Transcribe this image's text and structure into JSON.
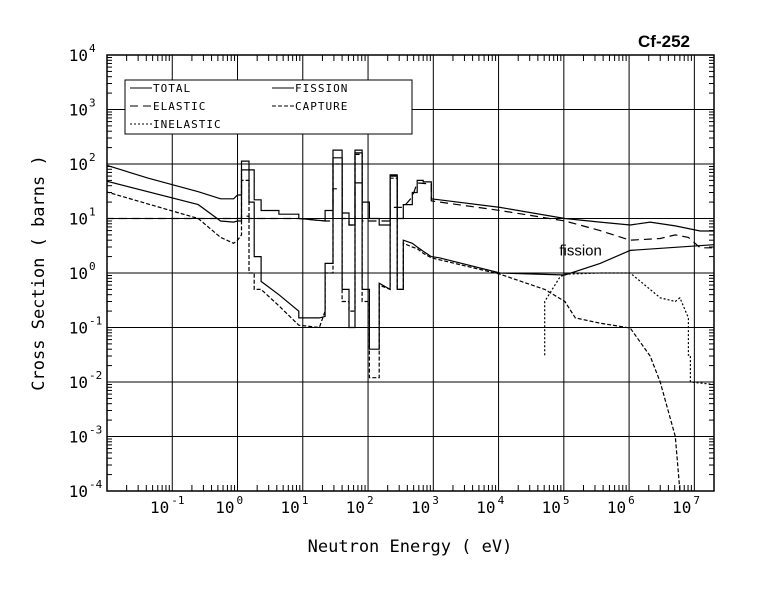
{
  "chart_data": {
    "type": "line",
    "title": "Cf-252",
    "xlabel": "Neutron Energy ( eV)",
    "ylabel": "Cross Section ( barns )",
    "xscale": "log",
    "yscale": "log",
    "xlim": [
      0.01,
      20000000
    ],
    "ylim": [
      0.0001,
      10000
    ],
    "grid": true,
    "legend_position": "top-left",
    "x_ticks": [
      {
        "exp": "-1",
        "value": 0.1
      },
      {
        "exp": "0",
        "value": 1
      },
      {
        "exp": "1",
        "value": 10
      },
      {
        "exp": "2",
        "value": 100
      },
      {
        "exp": "3",
        "value": 1000
      },
      {
        "exp": "4",
        "value": 10000
      },
      {
        "exp": "5",
        "value": 100000
      },
      {
        "exp": "6",
        "value": 1000000
      },
      {
        "exp": "7",
        "value": 10000000
      }
    ],
    "y_ticks": [
      {
        "exp": "-4",
        "value": 0.0001
      },
      {
        "exp": "-3",
        "value": 0.001
      },
      {
        "exp": "-2",
        "value": 0.01
      },
      {
        "exp": "-1",
        "value": 0.1
      },
      {
        "exp": "0",
        "value": 1
      },
      {
        "exp": "1",
        "value": 10
      },
      {
        "exp": "2",
        "value": 100
      },
      {
        "exp": "3",
        "value": 1000
      },
      {
        "exp": "4",
        "value": 10000
      }
    ],
    "tick_base": "10",
    "annotations": [
      {
        "text": "fission",
        "x": 150000,
        "y": 2.5
      }
    ],
    "series": [
      {
        "name": "TOTAL",
        "style": "solid",
        "points": [
          [
            0.0096,
            96
          ],
          [
            0.043,
            55
          ],
          [
            0.25,
            31
          ],
          [
            0.55,
            23
          ],
          [
            0.87,
            23
          ],
          [
            1,
            27
          ],
          [
            1.15,
            27
          ],
          [
            1.15,
            113
          ],
          [
            1.5,
            113
          ],
          [
            1.5,
            78
          ],
          [
            1.8,
            78
          ],
          [
            1.8,
            22
          ],
          [
            2.3,
            22
          ],
          [
            2.3,
            14
          ],
          [
            4.3,
            14
          ],
          [
            4.3,
            12
          ],
          [
            8.7,
            12
          ],
          [
            8.7,
            10
          ],
          [
            22,
            9
          ],
          [
            22,
            14
          ],
          [
            29,
            14
          ],
          [
            29,
            180
          ],
          [
            40,
            180
          ],
          [
            40,
            12.6
          ],
          [
            51,
            12.6
          ],
          [
            51,
            7.6
          ],
          [
            63,
            7.6
          ],
          [
            63,
            180
          ],
          [
            81,
            180
          ],
          [
            81,
            20
          ],
          [
            105,
            20
          ],
          [
            105,
            10
          ],
          [
            148,
            10
          ],
          [
            148,
            7.6
          ],
          [
            218,
            7.6
          ],
          [
            218,
            63
          ],
          [
            280,
            63
          ],
          [
            280,
            10
          ],
          [
            347,
            10
          ],
          [
            347,
            18
          ],
          [
            476,
            18
          ],
          [
            476,
            30
          ],
          [
            567,
            30
          ],
          [
            567,
            50
          ],
          [
            700,
            50
          ],
          [
            700,
            47
          ],
          [
            930,
            47
          ],
          [
            930,
            23
          ],
          [
            1240,
            22
          ],
          [
            10500,
            16
          ],
          [
            104000,
            10
          ],
          [
            360000,
            8.6
          ],
          [
            1040000,
            7.6
          ],
          [
            2100000,
            8.6
          ],
          [
            5100000,
            7.3
          ],
          [
            12300000,
            5.9
          ],
          [
            20000000,
            5.9
          ]
        ]
      },
      {
        "name": "ELASTIC",
        "style": "dashed",
        "points": [
          [
            0.0096,
            10
          ],
          [
            1,
            10
          ],
          [
            1.15,
            10
          ],
          [
            1.15,
            11
          ],
          [
            1.5,
            11
          ],
          [
            1.5,
            10
          ],
          [
            8.7,
            10
          ],
          [
            22,
            9
          ],
          [
            29,
            9
          ],
          [
            29,
            35
          ],
          [
            40,
            35
          ],
          [
            40,
            10
          ],
          [
            51,
            10
          ],
          [
            51,
            7.6
          ],
          [
            63,
            7.6
          ],
          [
            63,
            45
          ],
          [
            81,
            45
          ],
          [
            81,
            9
          ],
          [
            218,
            9
          ],
          [
            218,
            16
          ],
          [
            347,
            16
          ],
          [
            476,
            25
          ],
          [
            567,
            45
          ],
          [
            930,
            43
          ],
          [
            930,
            21
          ],
          [
            10500,
            14
          ],
          [
            104000,
            9
          ],
          [
            150000,
            8
          ],
          [
            360000,
            6
          ],
          [
            1040000,
            4
          ],
          [
            3000000,
            4.3
          ],
          [
            5100000,
            5
          ],
          [
            8100000,
            4.5
          ],
          [
            12300000,
            2.9
          ],
          [
            20000000,
            2.9
          ]
        ]
      },
      {
        "name": "INELASTIC",
        "style": "dotted",
        "points": [
          [
            51000,
            0.031
          ],
          [
            51000,
            0.3
          ],
          [
            87000,
            0.84
          ],
          [
            104000,
            0.95
          ],
          [
            360000,
            1
          ],
          [
            1040000,
            1
          ],
          [
            2100000,
            0.5
          ],
          [
            3000000,
            0.35
          ],
          [
            5100000,
            0.3
          ],
          [
            6000000,
            0.35
          ],
          [
            8100000,
            0.15
          ],
          [
            8100000,
            0.031
          ],
          [
            8700000,
            0.031
          ],
          [
            8700000,
            0.01
          ],
          [
            20000000,
            0.009
          ]
        ]
      },
      {
        "name": "FISSION",
        "style": "solid",
        "points": [
          [
            0.0096,
            49
          ],
          [
            0.25,
            18
          ],
          [
            0.55,
            9
          ],
          [
            0.87,
            8.6
          ],
          [
            1,
            9
          ],
          [
            1.15,
            9
          ],
          [
            1.15,
            78
          ],
          [
            1.5,
            78
          ],
          [
            1.5,
            20
          ],
          [
            1.8,
            20
          ],
          [
            1.8,
            2
          ],
          [
            2.3,
            2
          ],
          [
            2.3,
            0.7
          ],
          [
            4.3,
            0.4
          ],
          [
            8.7,
            0.2
          ],
          [
            8.7,
            0.15
          ],
          [
            18,
            0.15
          ],
          [
            22,
            0.16
          ],
          [
            22,
            1.5
          ],
          [
            29,
            1.5
          ],
          [
            29,
            130
          ],
          [
            40,
            130
          ],
          [
            40,
            0.5
          ],
          [
            51,
            0.5
          ],
          [
            51,
            0.1
          ],
          [
            63,
            0.1
          ],
          [
            63,
            160
          ],
          [
            81,
            160
          ],
          [
            81,
            0.5
          ],
          [
            105,
            0.5
          ],
          [
            105,
            0.04
          ],
          [
            148,
            0.04
          ],
          [
            148,
            0.65
          ],
          [
            218,
            0.5
          ],
          [
            218,
            60
          ],
          [
            280,
            60
          ],
          [
            280,
            0.5
          ],
          [
            347,
            0.5
          ],
          [
            347,
            4
          ],
          [
            476,
            3.5
          ],
          [
            567,
            3
          ],
          [
            700,
            2.5
          ],
          [
            930,
            2
          ],
          [
            1240,
            1.9
          ],
          [
            10500,
            1
          ],
          [
            104000,
            0.92
          ],
          [
            360000,
            1.5
          ],
          [
            1040000,
            2.6
          ],
          [
            20000000,
            3.3
          ]
        ]
      },
      {
        "name": "CAPTURE",
        "style": "dash",
        "points": [
          [
            0.0096,
            31
          ],
          [
            0.25,
            10
          ],
          [
            0.55,
            4.5
          ],
          [
            0.87,
            3.5
          ],
          [
            1,
            4
          ],
          [
            1.15,
            5
          ],
          [
            1.15,
            50
          ],
          [
            1.5,
            50
          ],
          [
            1.5,
            1
          ],
          [
            1.8,
            1
          ],
          [
            1.8,
            0.5
          ],
          [
            2.3,
            0.5
          ],
          [
            4.3,
            0.25
          ],
          [
            8.7,
            0.11
          ],
          [
            18,
            0.1
          ],
          [
            22,
            0.2
          ],
          [
            22,
            1
          ],
          [
            29,
            1
          ],
          [
            29,
            100
          ],
          [
            40,
            100
          ],
          [
            40,
            0.3
          ],
          [
            51,
            0.3
          ],
          [
            51,
            0.2
          ],
          [
            63,
            0.2
          ],
          [
            63,
            150
          ],
          [
            81,
            150
          ],
          [
            81,
            0.3
          ],
          [
            105,
            0.3
          ],
          [
            105,
            0.012
          ],
          [
            148,
            0.012
          ],
          [
            148,
            0.6
          ],
          [
            218,
            0.5
          ],
          [
            218,
            55
          ],
          [
            280,
            55
          ],
          [
            280,
            0.5
          ],
          [
            347,
            0.5
          ],
          [
            347,
            3.5
          ],
          [
            476,
            3
          ],
          [
            567,
            2.8
          ],
          [
            700,
            2.3
          ],
          [
            930,
            1.9
          ],
          [
            10500,
            0.95
          ],
          [
            51000,
            0.5
          ],
          [
            104000,
            0.3
          ],
          [
            150000,
            0.15
          ],
          [
            360000,
            0.12
          ],
          [
            1040000,
            0.098
          ],
          [
            2100000,
            0.03
          ],
          [
            3000000,
            0.01
          ],
          [
            5100000,
            0.001
          ],
          [
            6000000,
            0.0001
          ]
        ]
      }
    ],
    "legend": [
      {
        "label": "TOTAL",
        "style": "solid"
      },
      {
        "label": "ELASTIC",
        "style": "dashed"
      },
      {
        "label": "INELASTIC",
        "style": "dotted"
      },
      {
        "label": "FISSION",
        "style": "solid"
      },
      {
        "label": "CAPTURE",
        "style": "dash"
      }
    ]
  }
}
